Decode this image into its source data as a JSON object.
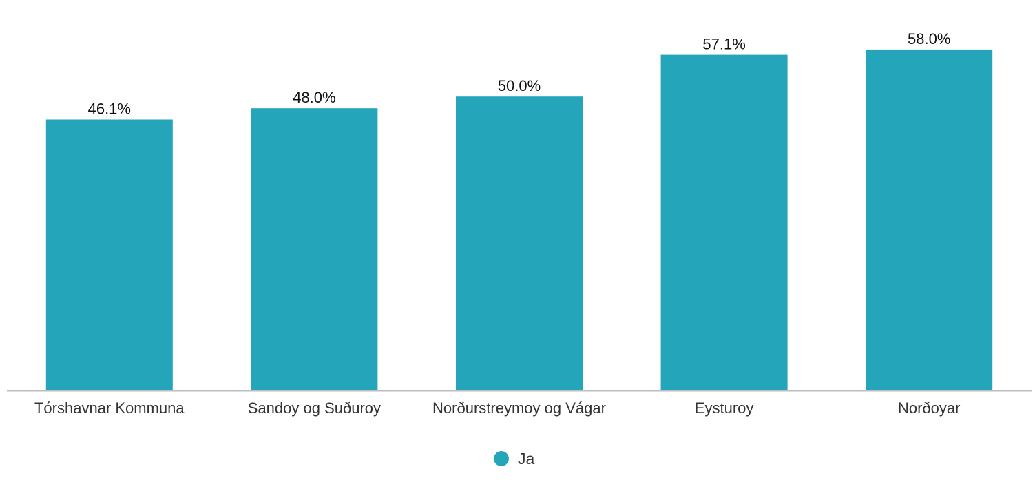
{
  "chart_data": {
    "type": "bar",
    "categories": [
      "Tórshavnar Kommuna",
      "Sandoy og Suðuroy",
      "Norðurstreymoy og Vágar",
      "Eysturoy",
      "Norðoyar"
    ],
    "series": [
      {
        "name": "Ja",
        "values": [
          46.1,
          48.0,
          50.0,
          57.1,
          58.0
        ],
        "labels": [
          "46.1%",
          "48.0%",
          "50.0%",
          "57.1%",
          "58.0%"
        ],
        "color": "#25A5B9"
      }
    ],
    "ylim": [
      0,
      61.5
    ],
    "grid": false,
    "legend": "bottom-center",
    "axis_color": "#BDBDBD"
  }
}
